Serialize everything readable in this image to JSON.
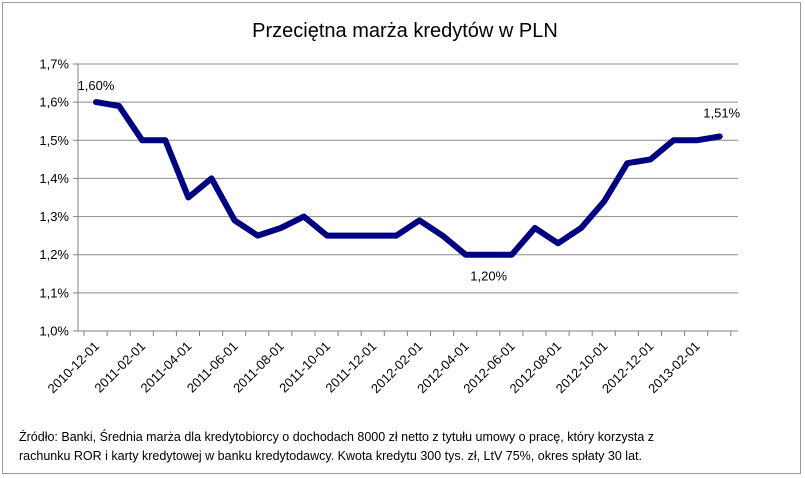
{
  "chart_data": {
    "type": "line",
    "title": "Przeciętna marża kredytów w PLN",
    "xlabel": "",
    "ylabel": "",
    "ylim": [
      1.0,
      1.7
    ],
    "y_ticks": [
      "1,0%",
      "1,1%",
      "1,2%",
      "1,3%",
      "1,4%",
      "1,5%",
      "1,6%",
      "1,7%"
    ],
    "x_tick_labels": [
      "2010-12-01",
      "2011-02-01",
      "2011-04-01",
      "2011-06-01",
      "2011-08-01",
      "2011-10-01",
      "2011-12-01",
      "2012-02-01",
      "2012-04-01",
      "2012-06-01",
      "2012-08-01",
      "2012-10-01",
      "2012-12-01",
      "2013-02-01"
    ],
    "grid": "horizontal",
    "legend": "none",
    "line_color": "#000080",
    "series": [
      {
        "x": [
          "2010-12-01",
          "2011-01-01",
          "2011-02-01",
          "2011-03-01",
          "2011-04-01",
          "2011-05-01",
          "2011-06-01",
          "2011-07-01",
          "2011-08-01",
          "2011-09-01",
          "2011-10-01",
          "2011-11-01",
          "2011-12-01",
          "2012-01-01",
          "2012-02-01",
          "2012-03-01",
          "2012-04-01",
          "2012-05-01",
          "2012-06-01",
          "2012-07-01",
          "2012-08-01",
          "2012-09-01",
          "2012-10-01",
          "2012-11-01",
          "2012-12-01",
          "2013-01-01",
          "2013-02-01",
          "2013-03-01"
        ],
        "values": [
          1.6,
          1.59,
          1.5,
          1.5,
          1.35,
          1.4,
          1.29,
          1.25,
          1.27,
          1.3,
          1.25,
          1.25,
          1.25,
          1.25,
          1.29,
          1.25,
          1.2,
          1.2,
          1.2,
          1.27,
          1.23,
          1.27,
          1.34,
          1.44,
          1.45,
          1.5,
          1.5,
          1.51
        ]
      }
    ],
    "annotations": [
      {
        "point": 0,
        "text": "1,60%"
      },
      {
        "point": 17,
        "text": "1,20%"
      },
      {
        "point": 27,
        "text": "1,51%"
      }
    ]
  },
  "source_lines": [
    "Źródło: Banki, Średnia marża dla kredytobiorcy  o dochodach 8000 zł netto z tytułu umowy o pracę, który korzysta z",
    "rachunku ROR i karty kredytowej  w banku kredytodawcy.  Kwota kredytu 300 tys. zł, LtV 75%, okres spłaty 30 lat."
  ]
}
